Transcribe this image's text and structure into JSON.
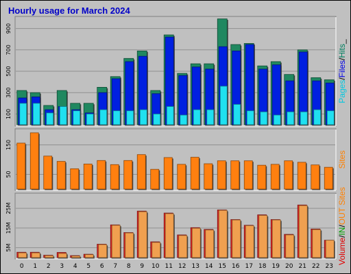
{
  "chart_data": {
    "type": "bar",
    "title": "Hourly usage for March 2024",
    "categories": [
      "0",
      "1",
      "2",
      "3",
      "4",
      "5",
      "6",
      "7",
      "8",
      "9",
      "10",
      "11",
      "12",
      "13",
      "14",
      "15",
      "16",
      "17",
      "18",
      "19",
      "20",
      "21",
      "22",
      "23"
    ],
    "panels": [
      {
        "name": "pages-files-hits",
        "ylim": [
          0,
          1000
        ],
        "yticks": [
          {
            "value": 100,
            "label": "100"
          },
          {
            "value": 300,
            "label": "300"
          },
          {
            "value": 500,
            "label": "500"
          },
          {
            "value": 700,
            "label": "700"
          },
          {
            "value": 900,
            "label": "900"
          }
        ],
        "legend": [
          {
            "label": "Pages",
            "color": "#00c8e0"
          },
          {
            "label": "/",
            "color": "#000000"
          },
          {
            "label": "Files",
            "color": "#0000e8"
          },
          {
            "label": "/",
            "color": "#000000"
          },
          {
            "label": "Hits",
            "color": "#008060"
          },
          {
            "label": "_",
            "color": "#000000"
          }
        ],
        "series": [
          {
            "name": "Hits",
            "color": "#208860",
            "values": [
              320,
              300,
              180,
              320,
              200,
              200,
              350,
              450,
              620,
              690,
              320,
              840,
              480,
              570,
              570,
              990,
              750,
              760,
              550,
              590,
              470,
              700,
              440,
              420
            ]
          },
          {
            "name": "Files",
            "color": "#0020e0",
            "values": [
              250,
              260,
              140,
              170,
              140,
              110,
              300,
              430,
              590,
              640,
              290,
              820,
              460,
              540,
              520,
              730,
              690,
              750,
              520,
              560,
              410,
              680,
              410,
              390
            ]
          },
          {
            "name": "Pages",
            "color": "#20e0f0",
            "values": [
              200,
              200,
              110,
              170,
              130,
              100,
              140,
              130,
              130,
              140,
              100,
              170,
              90,
              140,
              140,
              360,
              190,
              130,
              120,
              90,
              120,
              120,
              140,
              130
            ]
          }
        ]
      },
      {
        "name": "sites",
        "ylim": [
          0,
          200
        ],
        "yticks": [
          {
            "value": 50,
            "label": "50"
          },
          {
            "value": 150,
            "label": "150"
          }
        ],
        "legend": [
          {
            "label": "Sites",
            "color": "#ff8000"
          }
        ],
        "series": [
          {
            "name": "Sites",
            "color": "#ff8010",
            "values": [
              156,
              191,
              112,
              94,
              69,
              85,
              97,
              83,
              97,
              117,
              67,
              107,
              84,
              108,
              86,
              96,
              96,
              96,
              81,
              84,
              96,
              91,
              82,
              74
            ]
          }
        ]
      },
      {
        "name": "volume",
        "ylim": [
          0,
          3200
        ],
        "yticks": [
          {
            "value": 500,
            "label": "5M"
          },
          {
            "value": 1500,
            "label": "15M"
          },
          {
            "value": 2500,
            "label": "25M"
          }
        ],
        "legend": [
          {
            "label": "Volume",
            "color": "#e00000"
          },
          {
            "label": "/",
            "color": "#000000"
          },
          {
            "label": "IN",
            "color": "#00a000"
          },
          {
            "label": "/",
            "color": "#000000"
          },
          {
            "label": "OUT",
            "color": "#ff8000"
          },
          {
            "label": " ",
            "color": "#000000"
          },
          {
            "label": "Sites",
            "color": "#ff8000"
          }
        ],
        "series": [
          {
            "name": "Volume",
            "color": "#e02020",
            "values": [
              270,
              270,
              120,
              260,
              100,
              170,
              680,
              1660,
              1270,
              2360,
              800,
              2260,
              1150,
              1520,
              1430,
              2420,
              1930,
              1640,
              2170,
              1930,
              1180,
              2670,
              1450,
              880
            ]
          },
          {
            "name": "OUT",
            "color": "#f0a050",
            "values": [
              240,
              240,
              100,
              210,
              80,
              150,
              660,
              1640,
              1250,
              2330,
              770,
              2230,
              1120,
              1490,
              1400,
              2400,
              1910,
              1620,
              2140,
              1910,
              1150,
              2640,
              1420,
              880
            ]
          }
        ]
      }
    ]
  }
}
